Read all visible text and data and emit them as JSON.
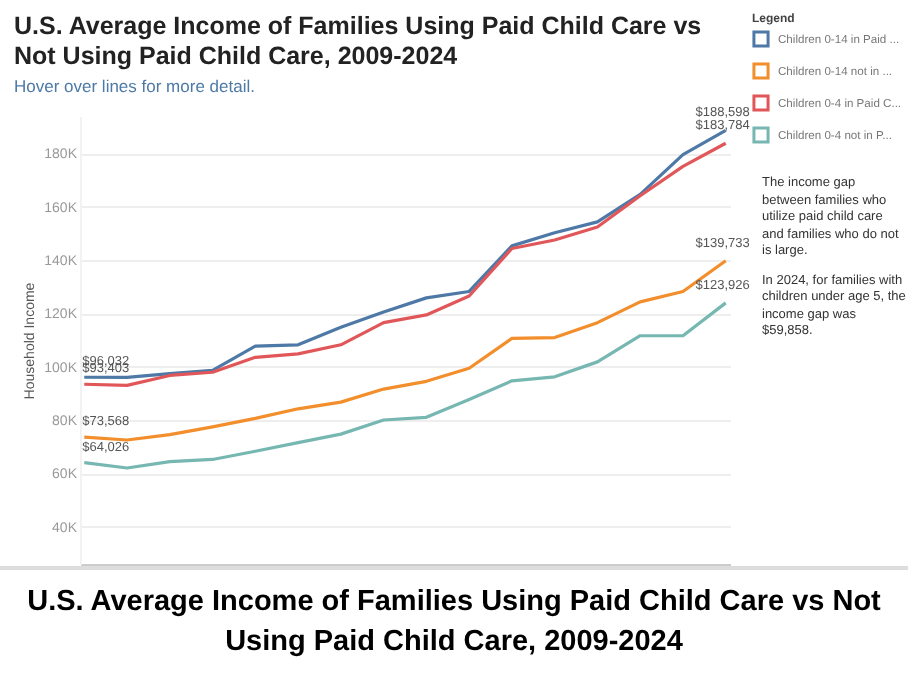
{
  "chart_data": {
    "type": "line",
    "title": "U.S. Average Income of Families Using Paid Child Care vs Not Using Paid Child Care, 2009-2024",
    "subtitle": "Hover over lines for more detail.",
    "ylabel": "Household Income",
    "legend_title": "Legend",
    "legend": "top right",
    "grid": "y",
    "tick_labels": "y",
    "categories": [
      null,
      null,
      null,
      null,
      null,
      null,
      null,
      null,
      null,
      null,
      null,
      null,
      null,
      null,
      null,
      null
    ],
    "ylim": [
      26000,
      194000
    ],
    "yticks": [
      {
        "value": 40000,
        "label": "40K"
      },
      {
        "value": 60000,
        "label": "60K"
      },
      {
        "value": 80000,
        "label": "80K"
      },
      {
        "value": 100000,
        "label": "100K"
      },
      {
        "value": 120000,
        "label": "120K"
      },
      {
        "value": 140000,
        "label": "140K"
      },
      {
        "value": 160000,
        "label": "160K"
      },
      {
        "value": 180000,
        "label": "180K"
      }
    ],
    "series": [
      {
        "name": "Children 0-14 in Paid ...",
        "color": "#4e79a7",
        "values": [
          96032,
          96000,
          97400,
          98600,
          107700,
          108200,
          114800,
          120500,
          125800,
          128200,
          145300,
          150200,
          154300,
          164600,
          179500,
          188598
        ],
        "value_labels": [
          "$96,032",
          null,
          null,
          null,
          null,
          null,
          null,
          null,
          null,
          null,
          null,
          null,
          null,
          null,
          null,
          "$188,598"
        ]
      },
      {
        "name": "Children 0-14 not in ...",
        "color": "#f28e2b",
        "values": [
          73568,
          72500,
          74500,
          77400,
          80600,
          84200,
          86700,
          91600,
          94500,
          99400,
          110600,
          110900,
          116500,
          124300,
          128200,
          139733
        ],
        "value_labels": [
          "$73,568",
          null,
          null,
          null,
          null,
          null,
          null,
          null,
          null,
          null,
          null,
          null,
          null,
          null,
          null,
          "$139,733"
        ]
      },
      {
        "name": "Children 0-4 in Paid C...",
        "color": "#e15759",
        "values": [
          93403,
          93000,
          96700,
          97900,
          103500,
          104800,
          108200,
          116500,
          119400,
          126500,
          144300,
          147500,
          152400,
          164100,
          175100,
          183784
        ],
        "value_labels": [
          "$93,403",
          null,
          null,
          null,
          null,
          null,
          null,
          null,
          null,
          null,
          null,
          null,
          null,
          null,
          null,
          "$183,784"
        ]
      },
      {
        "name": "Children 0-4 not in P...",
        "color": "#76b7b2",
        "values": [
          64026,
          62000,
          64400,
          65200,
          68300,
          71500,
          74700,
          80000,
          81000,
          87700,
          94700,
          96200,
          101800,
          111600,
          111600,
          123926
        ],
        "value_labels": [
          "$64,026",
          null,
          null,
          null,
          null,
          null,
          null,
          null,
          null,
          null,
          null,
          null,
          null,
          null,
          null,
          "$123,926"
        ]
      }
    ],
    "annotations": [
      "The income gap between families who utilize paid child care and families who do not is large.",
      "In 2024, for families with children under age 5, the income gap was $59,858.",
      "U.S. Average Income of Families Using Paid Child Care vs Not Using Paid Child Care, 2009-2024"
    ]
  }
}
